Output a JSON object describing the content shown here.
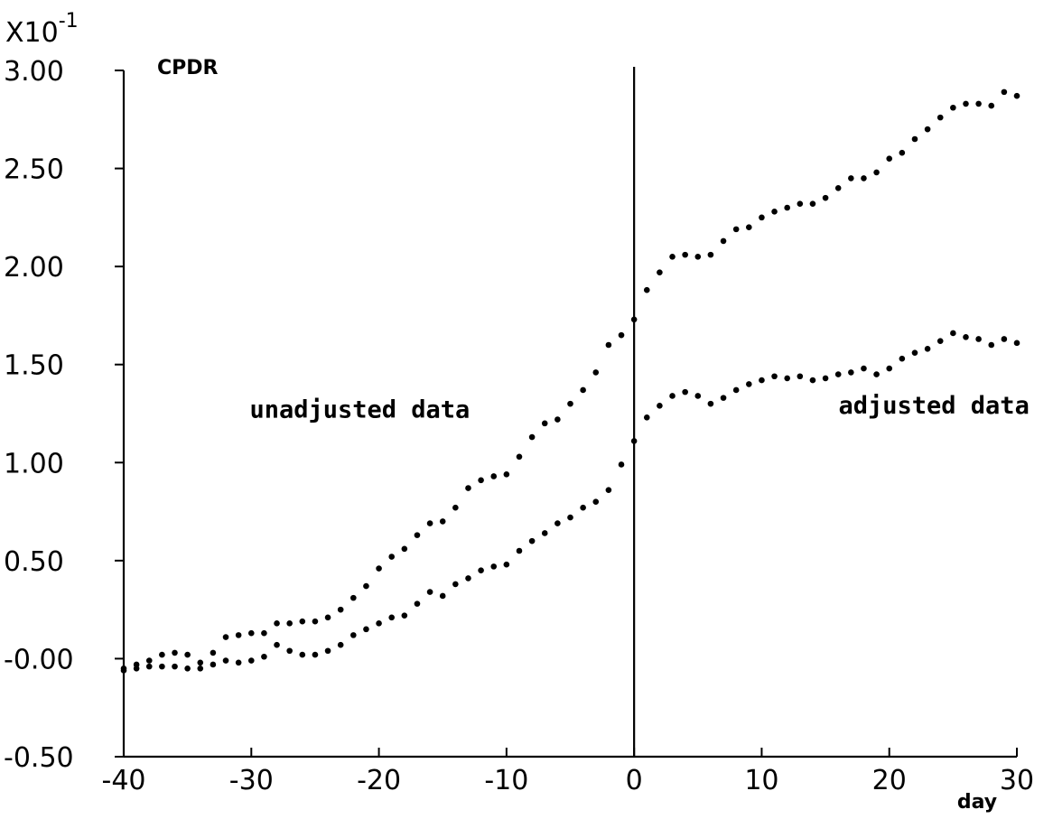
{
  "chart_data": {
    "type": "scatter",
    "scale_label": "X10",
    "scale_exponent": "-1",
    "ylabel": "CPDR",
    "xlabel": "day",
    "xlim": [
      -40,
      30
    ],
    "ylim": [
      -0.5,
      3.0
    ],
    "x_ticks": [
      {
        "value": -40,
        "label": "-40"
      },
      {
        "value": -30,
        "label": "-30"
      },
      {
        "value": -20,
        "label": "-20"
      },
      {
        "value": -10,
        "label": "-10"
      },
      {
        "value": 0,
        "label": "0"
      },
      {
        "value": 10,
        "label": "10"
      },
      {
        "value": 20,
        "label": "20"
      },
      {
        "value": 30,
        "label": "30"
      }
    ],
    "y_ticks": [
      {
        "value": -0.5,
        "label": "-0.50"
      },
      {
        "value": 0.0,
        "label": "-0.00"
      },
      {
        "value": 0.5,
        "label": "0.50"
      },
      {
        "value": 1.0,
        "label": "1.00"
      },
      {
        "value": 1.5,
        "label": "1.50"
      },
      {
        "value": 2.0,
        "label": "2.00"
      },
      {
        "value": 2.5,
        "label": "2.50"
      },
      {
        "value": 3.0,
        "label": "3.00"
      }
    ],
    "vertical_line_x": 0,
    "annotations": [
      {
        "text": "unadjusted data",
        "x": -21.5,
        "y": 1.23
      },
      {
        "text": "adjusted data",
        "x": 23.5,
        "y": 1.25
      }
    ],
    "series": [
      {
        "x": [
          -40,
          -39,
          -38,
          -37,
          -36,
          -35,
          -34,
          -33,
          -32,
          -31,
          -30,
          -29,
          -28,
          -27,
          -26,
          -25,
          -24,
          -23,
          -22,
          -21,
          -20,
          -19,
          -18,
          -17,
          -16,
          -15,
          -14,
          -13,
          -12,
          -11,
          -10,
          -9,
          -8,
          -7,
          -6,
          -5,
          -4,
          -3,
          -2,
          -1,
          0,
          1,
          2,
          3,
          4,
          5,
          6,
          7,
          8,
          9,
          10,
          11,
          12,
          13,
          14,
          15,
          16,
          17,
          18,
          19,
          20,
          21,
          22,
          23,
          24,
          25,
          26,
          27,
          28,
          29,
          30
        ],
        "y": [
          -0.05,
          -0.03,
          -0.01,
          0.02,
          0.03,
          0.02,
          -0.02,
          0.03,
          0.11,
          0.12,
          0.13,
          0.13,
          0.18,
          0.18,
          0.19,
          0.19,
          0.21,
          0.25,
          0.31,
          0.37,
          0.46,
          0.52,
          0.56,
          0.63,
          0.69,
          0.7,
          0.77,
          0.87,
          0.91,
          0.93,
          0.94,
          1.03,
          1.13,
          1.2,
          1.22,
          1.3,
          1.37,
          1.46,
          1.6,
          1.65,
          1.73,
          1.88,
          1.97,
          2.05,
          2.06,
          2.05,
          2.06,
          2.13,
          2.19,
          2.2,
          2.25,
          2.28,
          2.3,
          2.32,
          2.32,
          2.35,
          2.4,
          2.45,
          2.45,
          2.48,
          2.55,
          2.58,
          2.65,
          2.7,
          2.76,
          2.81,
          2.83,
          2.83,
          2.82,
          2.89,
          2.87
        ]
      },
      {
        "x": [
          -40,
          -39,
          -38,
          -37,
          -36,
          -35,
          -34,
          -33,
          -32,
          -31,
          -30,
          -29,
          -28,
          -27,
          -26,
          -25,
          -24,
          -23,
          -22,
          -21,
          -20,
          -19,
          -18,
          -17,
          -16,
          -15,
          -14,
          -13,
          -12,
          -11,
          -10,
          -9,
          -8,
          -7,
          -6,
          -5,
          -4,
          -3,
          -2,
          -1,
          0,
          1,
          2,
          3,
          4,
          5,
          6,
          7,
          8,
          9,
          10,
          11,
          12,
          13,
          14,
          15,
          16,
          17,
          18,
          19,
          20,
          21,
          22,
          23,
          24,
          25,
          26,
          27,
          28,
          29,
          30
        ],
        "y": [
          -0.06,
          -0.05,
          -0.04,
          -0.04,
          -0.04,
          -0.05,
          -0.05,
          -0.03,
          -0.01,
          -0.02,
          -0.01,
          0.01,
          0.07,
          0.04,
          0.02,
          0.02,
          0.04,
          0.07,
          0.12,
          0.15,
          0.18,
          0.21,
          0.22,
          0.28,
          0.34,
          0.32,
          0.38,
          0.41,
          0.45,
          0.47,
          0.48,
          0.55,
          0.6,
          0.64,
          0.69,
          0.72,
          0.77,
          0.8,
          0.86,
          0.99,
          1.11,
          1.23,
          1.29,
          1.34,
          1.36,
          1.34,
          1.3,
          1.33,
          1.37,
          1.4,
          1.42,
          1.44,
          1.43,
          1.44,
          1.42,
          1.43,
          1.45,
          1.46,
          1.48,
          1.45,
          1.48,
          1.53,
          1.56,
          1.58,
          1.62,
          1.66,
          1.64,
          1.63,
          1.6,
          1.63,
          1.61
        ]
      }
    ]
  }
}
